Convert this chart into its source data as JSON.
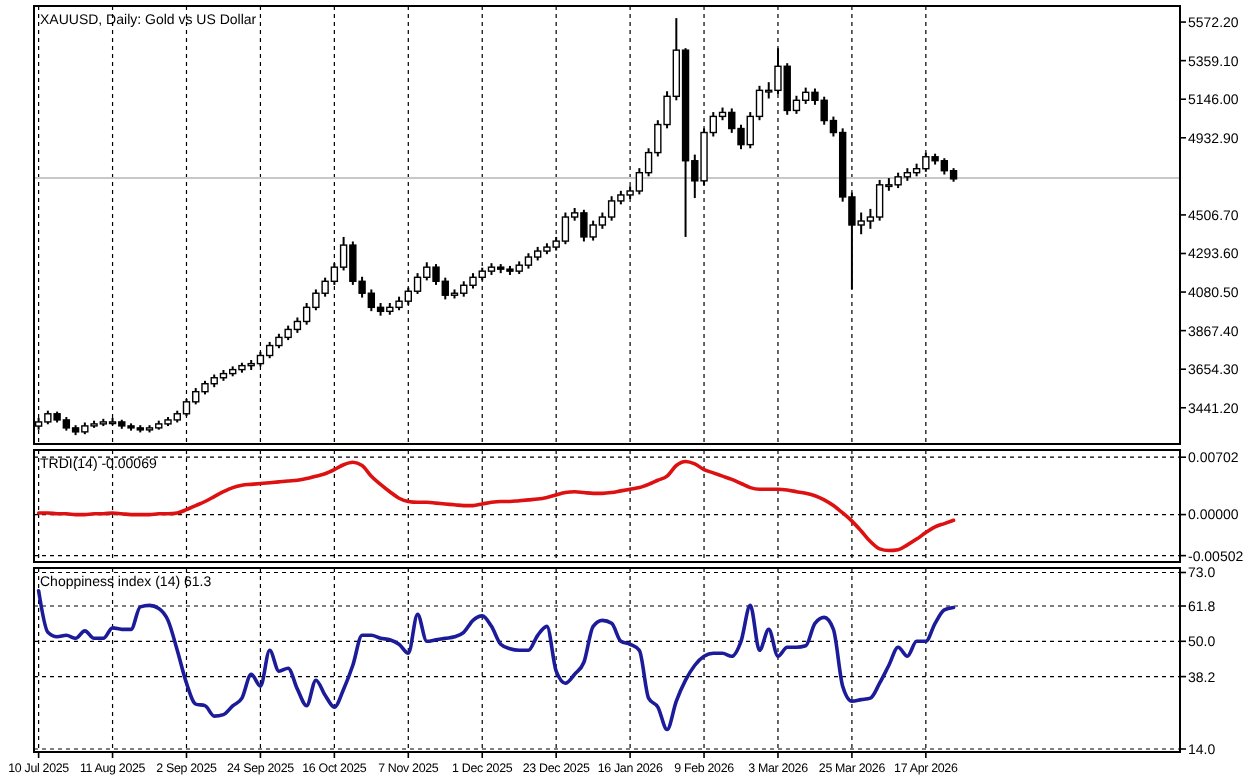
{
  "chart_data": [
    {
      "type": "candlestick",
      "title": "XAUUSD, Daily:  Gold vs US Dollar",
      "color": "#000000",
      "grid": "x",
      "tick_labels": "y",
      "categories": [
        null,
        null,
        null,
        null,
        null,
        null,
        null,
        null,
        null,
        null,
        null,
        null,
        null,
        null,
        null,
        null,
        null,
        null,
        null,
        null,
        null,
        null,
        null,
        null,
        null,
        null,
        null,
        null,
        null,
        null,
        null,
        null,
        null,
        null,
        null,
        null,
        null,
        null,
        null,
        null,
        null,
        null,
        null,
        null,
        null,
        null,
        null,
        null,
        null,
        null,
        null,
        null,
        null,
        null,
        null,
        null,
        null,
        null,
        null,
        null,
        null,
        null,
        null,
        null,
        null,
        null,
        null,
        null,
        null,
        null,
        null,
        null,
        null,
        null,
        null,
        null,
        null,
        null,
        null,
        null,
        null,
        null,
        null,
        null,
        null,
        null,
        null,
        null,
        null,
        null,
        null,
        null,
        null,
        null,
        null,
        null,
        null,
        null,
        null,
        null,
        null,
        null,
        null,
        null,
        null,
        null,
        null,
        null,
        null,
        null,
        null,
        null,
        null,
        null,
        null,
        null,
        null,
        null,
        null,
        null,
        null,
        null,
        null,
        null
      ],
      "ohlc": [
        [
          3340,
          3385,
          3320,
          3363
        ],
        [
          3363,
          3425,
          3350,
          3408
        ],
        [
          3408,
          3420,
          3360,
          3374
        ],
        [
          3374,
          3390,
          3315,
          3330
        ],
        [
          3330,
          3345,
          3290,
          3308
        ],
        [
          3308,
          3360,
          3295,
          3341
        ],
        [
          3341,
          3370,
          3330,
          3352
        ],
        [
          3352,
          3380,
          3340,
          3363
        ],
        [
          3363,
          3385,
          3345,
          3363
        ],
        [
          3363,
          3375,
          3325,
          3341
        ],
        [
          3341,
          3355,
          3315,
          3330
        ],
        [
          3330,
          3345,
          3305,
          3319
        ],
        [
          3319,
          3345,
          3305,
          3330
        ],
        [
          3330,
          3370,
          3320,
          3352
        ],
        [
          3352,
          3390,
          3340,
          3374
        ],
        [
          3374,
          3425,
          3360,
          3408
        ],
        [
          3408,
          3490,
          3395,
          3474
        ],
        [
          3474,
          3550,
          3460,
          3530
        ],
        [
          3530,
          3590,
          3515,
          3574
        ],
        [
          3574,
          3625,
          3555,
          3607
        ],
        [
          3607,
          3650,
          3590,
          3630
        ],
        [
          3630,
          3670,
          3615,
          3652
        ],
        [
          3652,
          3690,
          3635,
          3674
        ],
        [
          3674,
          3705,
          3650,
          3685
        ],
        [
          3685,
          3750,
          3670,
          3730
        ],
        [
          3730,
          3805,
          3715,
          3785
        ],
        [
          3785,
          3850,
          3770,
          3830
        ],
        [
          3830,
          3895,
          3815,
          3874
        ],
        [
          3874,
          3940,
          3855,
          3918
        ],
        [
          3918,
          4020,
          3900,
          3996
        ],
        [
          3996,
          4095,
          3980,
          4074
        ],
        [
          4074,
          4160,
          4055,
          4140
        ],
        [
          4140,
          4240,
          4120,
          4218
        ],
        [
          4218,
          4385,
          4200,
          4340
        ],
        [
          4340,
          4360,
          4120,
          4140
        ],
        [
          4140,
          4165,
          4050,
          4074
        ],
        [
          4074,
          4095,
          3975,
          3996
        ],
        [
          3996,
          4020,
          3950,
          3974
        ],
        [
          3974,
          4020,
          3955,
          3996
        ],
        [
          3996,
          4055,
          3980,
          4030
        ],
        [
          4030,
          4105,
          4010,
          4085
        ],
        [
          4085,
          4185,
          4070,
          4162
        ],
        [
          4162,
          4245,
          4145,
          4218
        ],
        [
          4218,
          4235,
          4120,
          4140
        ],
        [
          4140,
          4160,
          4040,
          4063
        ],
        [
          4063,
          4095,
          4045,
          4074
        ],
        [
          4074,
          4140,
          4055,
          4118
        ],
        [
          4118,
          4185,
          4100,
          4162
        ],
        [
          4162,
          4215,
          4145,
          4196
        ],
        [
          4196,
          4240,
          4175,
          4218
        ],
        [
          4218,
          4235,
          4185,
          4207
        ],
        [
          4207,
          4225,
          4175,
          4196
        ],
        [
          4196,
          4250,
          4180,
          4229
        ],
        [
          4229,
          4295,
          4210,
          4274
        ],
        [
          4274,
          4330,
          4255,
          4307
        ],
        [
          4307,
          4350,
          4290,
          4329
        ],
        [
          4329,
          4385,
          4310,
          4362
        ],
        [
          4362,
          4520,
          4345,
          4495
        ],
        [
          4495,
          4545,
          4475,
          4518
        ],
        [
          4518,
          4535,
          4360,
          4385
        ],
        [
          4385,
          4475,
          4365,
          4451
        ],
        [
          4451,
          4520,
          4430,
          4495
        ],
        [
          4495,
          4610,
          4475,
          4584
        ],
        [
          4584,
          4640,
          4565,
          4617
        ],
        [
          4617,
          4665,
          4595,
          4639
        ],
        [
          4639,
          4765,
          4620,
          4740
        ],
        [
          4740,
          4875,
          4720,
          4851
        ],
        [
          4851,
          5030,
          4830,
          5006
        ],
        [
          5006,
          5190,
          4985,
          5162
        ],
        [
          5162,
          5594,
          5140,
          5417
        ],
        [
          5417,
          5428,
          4385,
          4806
        ],
        [
          4806,
          4840,
          4600,
          4695
        ],
        [
          4695,
          4985,
          4670,
          4962
        ],
        [
          4962,
          5075,
          4940,
          5051
        ],
        [
          5051,
          5100,
          5030,
          5073
        ],
        [
          5073,
          5095,
          4960,
          4984
        ],
        [
          4984,
          5005,
          4870,
          4895
        ],
        [
          4895,
          5075,
          4875,
          5051
        ],
        [
          5051,
          5220,
          5030,
          5195
        ],
        [
          5195,
          5240,
          5150,
          5195
        ],
        [
          5195,
          5428,
          5175,
          5328
        ],
        [
          5328,
          5345,
          5060,
          5084
        ],
        [
          5084,
          5165,
          5065,
          5140
        ],
        [
          5140,
          5210,
          5120,
          5184
        ],
        [
          5184,
          5205,
          5115,
          5140
        ],
        [
          5140,
          5160,
          5005,
          5028
        ],
        [
          5028,
          5050,
          4940,
          4962
        ],
        [
          4962,
          4985,
          4580,
          4606
        ],
        [
          4606,
          4630,
          4096,
          4451
        ],
        [
          4451,
          4520,
          4400,
          4473
        ],
        [
          4473,
          4540,
          4430,
          4495
        ],
        [
          4495,
          4700,
          4475,
          4673
        ],
        [
          4673,
          4710,
          4640,
          4673
        ],
        [
          4673,
          4740,
          4655,
          4717
        ],
        [
          4717,
          4765,
          4695,
          4740
        ],
        [
          4740,
          4790,
          4720,
          4762
        ],
        [
          4762,
          4850,
          4745,
          4828
        ],
        [
          4828,
          4845,
          4785,
          4806
        ],
        [
          4806,
          4820,
          4730,
          4751
        ],
        [
          4751,
          4765,
          4690,
          4706
        ],
        null,
        null,
        null,
        null,
        null,
        null,
        null,
        null,
        null,
        null,
        null,
        null,
        null,
        null,
        null,
        null,
        null,
        null,
        null,
        null,
        null,
        null,
        null,
        null
      ],
      "ylim": [
        3241,
        5661
      ],
      "yticks": [
        {
          "value": 3441.2,
          "label": "3441.20"
        },
        {
          "value": 3654.3,
          "label": "3654.30"
        },
        {
          "value": 3867.4,
          "label": "3867.40"
        },
        {
          "value": 4080.5,
          "label": "4080.50"
        },
        {
          "value": 4293.6,
          "label": "4293.60"
        },
        {
          "value": 4506.7,
          "label": "4506.70"
        },
        {
          "value": 4932.9,
          "label": "4932.90"
        },
        {
          "value": 5146,
          "label": "5146.00"
        },
        {
          "value": 5359.1,
          "label": "5359.10"
        },
        {
          "value": 5572.2,
          "label": "5572.20"
        }
      ],
      "ref_lines": [
        {
          "axis": "y",
          "value": 4711,
          "color": "#c8c8c8"
        }
      ]
    },
    {
      "type": "line",
      "title": "TRDI(14) -0.00069",
      "grid": true,
      "tick_labels": "y",
      "categories": [
        null,
        null,
        null,
        null,
        null,
        null,
        null,
        null,
        null,
        null,
        null,
        null,
        null,
        null,
        null,
        null,
        null,
        null,
        null,
        null,
        null,
        null,
        null,
        null,
        null,
        null,
        null,
        null,
        null,
        null,
        null,
        null,
        null,
        null,
        null,
        null,
        null,
        null,
        null,
        null,
        null,
        null,
        null,
        null,
        null,
        null,
        null,
        null,
        null,
        null,
        null,
        null,
        null,
        null,
        null,
        null,
        null,
        null,
        null,
        null,
        null,
        null,
        null,
        null,
        null,
        null,
        null,
        null,
        null,
        null,
        null,
        null,
        null,
        null,
        null,
        null,
        null,
        null,
        null,
        null,
        null,
        null,
        null,
        null,
        null,
        null,
        null,
        null,
        null,
        null,
        null,
        null,
        null,
        null,
        null,
        null,
        null,
        null,
        null,
        null,
        null,
        null,
        null,
        null,
        null,
        null,
        null,
        null,
        null,
        null,
        null,
        null,
        null,
        null,
        null,
        null,
        null,
        null,
        null,
        null,
        null,
        null,
        null,
        null
      ],
      "series": [
        {
          "color": "#dd1111",
          "values": [
            0.0002,
            0.0002,
            0.0001,
            0.0001,
            0,
            0,
            0.0001,
            0.0001,
            0.0002,
            0.0001,
            0,
            0,
            0,
            0.0001,
            0.0001,
            0.0002,
            0.0006,
            0.0011,
            0.0016,
            0.0022,
            0.0028,
            0.0033,
            0.0036,
            0.0037,
            0.0038,
            0.0039,
            0.004,
            0.0041,
            0.0042,
            0.0044,
            0.0047,
            0.005,
            0.0055,
            0.0061,
            0.0064,
            0.006,
            0.0047,
            0.0037,
            0.0028,
            0.002,
            0.0016,
            0.0015,
            0.0015,
            0.0014,
            0.0013,
            0.0012,
            0.0011,
            0.0011,
            0.0013,
            0.0015,
            0.0016,
            0.0016,
            0.0017,
            0.0018,
            0.0019,
            0.0021,
            0.0024,
            0.0027,
            0.0028,
            0.0027,
            0.0026,
            0.0026,
            0.0027,
            0.0029,
            0.0031,
            0.0033,
            0.0037,
            0.0042,
            0.0047,
            0.006,
            0.0065,
            0.0062,
            0.0055,
            0.0051,
            0.0047,
            0.0043,
            0.0038,
            0.0033,
            0.0031,
            0.0031,
            0.0031,
            0.003,
            0.0028,
            0.0026,
            0.0023,
            0.0018,
            0.0011,
            0.0002,
            -0.0008,
            -0.002,
            -0.0033,
            -0.0042,
            -0.0044,
            -0.0043,
            -0.0037,
            -0.003,
            -0.0022,
            -0.0015,
            -0.0011,
            -0.0007,
            null,
            null,
            null,
            null,
            null,
            null,
            null,
            null,
            null,
            null,
            null,
            null,
            null,
            null,
            null,
            null,
            null,
            null,
            null,
            null,
            null,
            null,
            null,
            null
          ]
        }
      ],
      "ylim": [
        -0.0058,
        0.0079
      ],
      "yticks": [
        {
          "value": -0.00502,
          "label": "-0.00502"
        },
        {
          "value": 0,
          "label": "0.00000"
        },
        {
          "value": 0.00702,
          "label": "0.00702"
        }
      ]
    },
    {
      "type": "line",
      "title": "Choppiness index (14) 61.3",
      "grid": true,
      "categories": [
        "10 Jul 2025",
        null,
        null,
        null,
        null,
        null,
        null,
        null,
        "11 Aug 2025",
        null,
        null,
        null,
        null,
        null,
        null,
        null,
        "2 Sep 2025",
        null,
        null,
        null,
        null,
        null,
        null,
        null,
        "24 Sep 2025",
        null,
        null,
        null,
        null,
        null,
        null,
        null,
        "16 Oct 2025",
        null,
        null,
        null,
        null,
        null,
        null,
        null,
        "7 Nov 2025",
        null,
        null,
        null,
        null,
        null,
        null,
        null,
        "1 Dec 2025",
        null,
        null,
        null,
        null,
        null,
        null,
        null,
        "23 Dec 2025",
        null,
        null,
        null,
        null,
        null,
        null,
        null,
        "16 Jan 2026",
        null,
        null,
        null,
        null,
        null,
        null,
        null,
        "9 Feb 2026",
        null,
        null,
        null,
        null,
        null,
        null,
        null,
        "3 Mar 2026",
        null,
        null,
        null,
        null,
        null,
        null,
        null,
        "25 Mar 2026",
        null,
        null,
        null,
        null,
        null,
        null,
        null,
        "17 Apr 2026",
        null,
        null,
        null,
        null,
        null,
        null,
        null,
        null,
        null,
        null,
        null,
        null,
        null,
        null,
        null,
        null,
        null,
        null,
        null,
        null,
        null,
        null,
        null,
        null,
        null,
        null,
        null
      ],
      "series": [
        {
          "color": "#1c1c9a",
          "values": [
            66.9,
            53,
            51.5,
            52,
            51,
            53.5,
            51,
            51,
            54.5,
            54,
            54,
            61.5,
            62,
            61,
            57,
            47,
            36,
            29,
            28.5,
            25,
            25.5,
            28.4,
            31,
            39,
            35,
            47,
            40,
            41,
            34,
            28.5,
            37,
            32,
            28,
            34,
            42,
            52,
            52,
            51,
            50.5,
            49,
            46,
            59,
            50,
            50.5,
            51,
            51.5,
            53,
            57,
            58.5,
            55,
            49,
            47.5,
            47,
            47,
            52,
            55,
            40,
            36,
            39,
            43,
            55,
            57,
            56,
            50,
            49,
            47,
            31,
            28,
            20.5,
            30,
            37,
            42,
            45,
            46,
            46,
            45,
            50,
            62,
            47,
            54,
            45,
            48,
            48,
            48.5,
            56,
            58,
            54,
            35,
            30,
            30.5,
            31,
            36,
            42,
            48,
            45,
            50,
            50,
            56,
            60.5,
            61.3,
            null,
            null,
            null,
            null,
            null,
            null,
            null,
            null,
            null,
            null,
            null,
            null,
            null,
            null,
            null,
            null,
            null,
            null,
            null,
            null,
            null,
            null,
            null,
            null
          ]
        }
      ],
      "ylim": [
        13,
        74.5
      ],
      "yticks": [
        {
          "value": 14,
          "label": "14.0"
        },
        {
          "value": 38.2,
          "label": "38.2"
        },
        {
          "value": 50,
          "label": "50.0"
        },
        {
          "value": 61.8,
          "label": "61.8"
        },
        {
          "value": 73,
          "label": "73.0"
        }
      ]
    }
  ]
}
